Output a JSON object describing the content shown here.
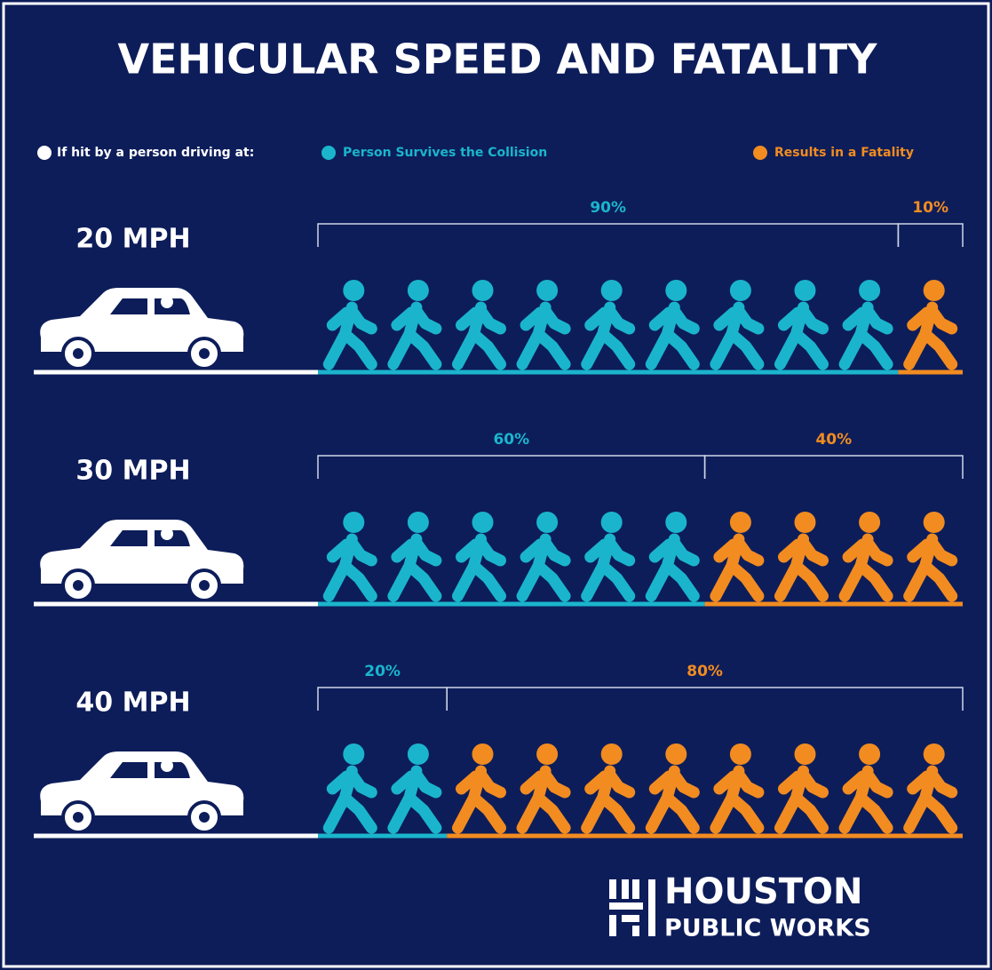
{
  "chart_data": {
    "type": "pictogram",
    "title": "VEHICULAR SPEED AND FATALITY",
    "legend_title": "If hit by a person driving at:",
    "categories": [
      "20 MPH",
      "30 MPH",
      "40 MPH"
    ],
    "xlim": [
      0,
      100
    ],
    "series": [
      {
        "name": "Person Survives the Collision",
        "color": "#1ab5cc",
        "values": [
          90,
          60,
          20
        ],
        "value_labels": [
          "90%",
          "60%",
          "20%"
        ]
      },
      {
        "name": "Results in a Fatality",
        "color": "#f28c20",
        "values": [
          10,
          40,
          80
        ],
        "value_labels": [
          "10%",
          "40%",
          "80%"
        ]
      }
    ],
    "logo_lines": [
      "HOUSTON",
      "PUBLIC WORKS"
    ]
  }
}
